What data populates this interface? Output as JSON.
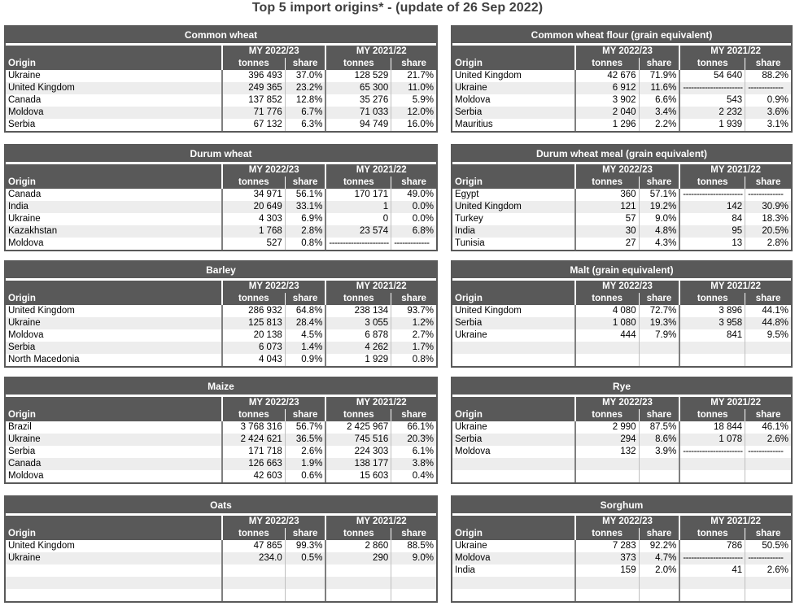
{
  "title": "Top 5 import origins* - (update of 26 Sep 2022)",
  "headers": {
    "origin": "Origin",
    "period1": "MY 2022/23",
    "period2": "MY 2021/22",
    "tonnes": "tonnes",
    "share": "share"
  },
  "tables": [
    {
      "title": "Common wheat",
      "rows": [
        {
          "origin": "Ukraine",
          "t1": "396 493",
          "s1": "37.0%",
          "t2": "128 529",
          "s2": "21.7%"
        },
        {
          "origin": "United Kingdom",
          "t1": "249 365",
          "s1": "23.2%",
          "t2": "65 300",
          "s2": "11.0%"
        },
        {
          "origin": "Canada",
          "t1": "137 852",
          "s1": "12.8%",
          "t2": "35 276",
          "s2": "5.9%"
        },
        {
          "origin": "Moldova",
          "t1": "71 776",
          "s1": "6.7%",
          "t2": "71 033",
          "s2": "12.0%"
        },
        {
          "origin": "Serbia",
          "t1": "67 132",
          "s1": "6.3%",
          "t2": "94 749",
          "s2": "16.0%"
        }
      ]
    },
    {
      "title": "Common wheat flour (grain equivalent)",
      "rows": [
        {
          "origin": "United Kingdom",
          "t1": "42 676",
          "s1": "71.9%",
          "t2": "54 640",
          "s2": "88.2%"
        },
        {
          "origin": "Ukraine",
          "t1": "6 912",
          "s1": "11.6%",
          "t2": "----------------------",
          "s2": "-------------"
        },
        {
          "origin": "Moldova",
          "t1": "3 902",
          "s1": "6.6%",
          "t2": "543",
          "s2": "0.9%"
        },
        {
          "origin": "Serbia",
          "t1": "2 040",
          "s1": "3.4%",
          "t2": "2 232",
          "s2": "3.6%"
        },
        {
          "origin": "Mauritius",
          "t1": "1 296",
          "s1": "2.2%",
          "t2": "1 939",
          "s2": "3.1%"
        }
      ]
    },
    {
      "title": "Durum wheat",
      "rows": [
        {
          "origin": "Canada",
          "t1": "34 971",
          "s1": "56.1%",
          "t2": "170 171",
          "s2": "49.0%"
        },
        {
          "origin": "India",
          "t1": "20 649",
          "s1": "33.1%",
          "t2": "1",
          "s2": "0.0%"
        },
        {
          "origin": "Ukraine",
          "t1": "4 303",
          "s1": "6.9%",
          "t2": "0",
          "s2": "0.0%"
        },
        {
          "origin": "Kazakhstan",
          "t1": "1 768",
          "s1": "2.8%",
          "t2": "23 574",
          "s2": "6.8%"
        },
        {
          "origin": "Moldova",
          "t1": "527",
          "s1": "0.8%",
          "t2": "----------------------",
          "s2": "-------------"
        }
      ]
    },
    {
      "title": "Durum wheat meal (grain equivalent)",
      "rows": [
        {
          "origin": "Egypt",
          "t1": "360",
          "s1": "57.1%",
          "t2": "----------------------",
          "s2": "-------------"
        },
        {
          "origin": "United Kingdom",
          "t1": "121",
          "s1": "19.2%",
          "t2": "142",
          "s2": "30.9%"
        },
        {
          "origin": "Turkey",
          "t1": "57",
          "s1": "9.0%",
          "t2": "84",
          "s2": "18.3%"
        },
        {
          "origin": "India",
          "t1": "30",
          "s1": "4.8%",
          "t2": "95",
          "s2": "20.5%"
        },
        {
          "origin": "Tunisia",
          "t1": "27",
          "s1": "4.3%",
          "t2": "13",
          "s2": "2.8%"
        }
      ]
    },
    {
      "title": "Barley",
      "rows": [
        {
          "origin": "United Kingdom",
          "t1": "286 932",
          "s1": "64.8%",
          "t2": "238 134",
          "s2": "93.7%"
        },
        {
          "origin": "Ukraine",
          "t1": "125 813",
          "s1": "28.4%",
          "t2": "3 055",
          "s2": "1.2%"
        },
        {
          "origin": "Moldova",
          "t1": "20 138",
          "s1": "4.5%",
          "t2": "6 878",
          "s2": "2.7%"
        },
        {
          "origin": "Serbia",
          "t1": "6 073",
          "s1": "1.4%",
          "t2": "4 262",
          "s2": "1.7%"
        },
        {
          "origin": "North Macedonia",
          "t1": "4 043",
          "s1": "0.9%",
          "t2": "1 929",
          "s2": "0.8%"
        }
      ]
    },
    {
      "title": "Malt (grain equivalent)",
      "rows": [
        {
          "origin": "United Kingdom",
          "t1": "4 080",
          "s1": "72.7%",
          "t2": "3 896",
          "s2": "44.1%"
        },
        {
          "origin": "Serbia",
          "t1": "1 080",
          "s1": "19.3%",
          "t2": "3 958",
          "s2": "44.8%"
        },
        {
          "origin": "Ukraine",
          "t1": "444",
          "s1": "7.9%",
          "t2": "841",
          "s2": "9.5%"
        },
        {
          "origin": "",
          "t1": "",
          "s1": "",
          "t2": "",
          "s2": ""
        },
        {
          "origin": "",
          "t1": "",
          "s1": "",
          "t2": "",
          "s2": ""
        }
      ]
    },
    {
      "title": "Maize",
      "rows": [
        {
          "origin": "Brazil",
          "t1": "3 768 316",
          "s1": "56.7%",
          "t2": "2 425 967",
          "s2": "66.1%"
        },
        {
          "origin": "Ukraine",
          "t1": "2 424 621",
          "s1": "36.5%",
          "t2": "745 516",
          "s2": "20.3%"
        },
        {
          "origin": "Serbia",
          "t1": "171 718",
          "s1": "2.6%",
          "t2": "224 303",
          "s2": "6.1%"
        },
        {
          "origin": "Canada",
          "t1": "126 663",
          "s1": "1.9%",
          "t2": "138 177",
          "s2": "3.8%"
        },
        {
          "origin": "Moldova",
          "t1": "42 603",
          "s1": "0.6%",
          "t2": "15 603",
          "s2": "0.4%"
        }
      ]
    },
    {
      "title": "Rye",
      "rows": [
        {
          "origin": "Ukraine",
          "t1": "2 990",
          "s1": "87.5%",
          "t2": "18 844",
          "s2": "46.1%"
        },
        {
          "origin": "Serbia",
          "t1": "294",
          "s1": "8.6%",
          "t2": "1 078",
          "s2": "2.6%"
        },
        {
          "origin": "Moldova",
          "t1": "132",
          "s1": "3.9%",
          "t2": "----------------------",
          "s2": "-------------"
        },
        {
          "origin": "",
          "t1": "",
          "s1": "",
          "t2": "",
          "s2": ""
        },
        {
          "origin": "",
          "t1": "",
          "s1": "",
          "t2": "",
          "s2": ""
        }
      ]
    },
    {
      "title": "Oats",
      "rows": [
        {
          "origin": "United Kingdom",
          "t1": "47 865",
          "s1": "99.3%",
          "t2": "2 860",
          "s2": "88.5%"
        },
        {
          "origin": "Ukraine",
          "t1": "234.0",
          "s1": "0.5%",
          "t2": "290",
          "s2": "9.0%"
        },
        {
          "origin": "",
          "t1": "",
          "s1": "",
          "t2": "",
          "s2": ""
        },
        {
          "origin": "",
          "t1": "",
          "s1": "",
          "t2": "",
          "s2": ""
        },
        {
          "origin": "",
          "t1": "",
          "s1": "",
          "t2": "",
          "s2": ""
        }
      ]
    },
    {
      "title": "Sorghum",
      "rows": [
        {
          "origin": "Ukraine",
          "t1": "7 283",
          "s1": "92.2%",
          "t2": "786",
          "s2": "50.5%"
        },
        {
          "origin": "Moldova",
          "t1": "373",
          "s1": "4.7%",
          "t2": "----------------------",
          "s2": "-------------"
        },
        {
          "origin": "India",
          "t1": "159",
          "s1": "2.0%",
          "t2": "41",
          "s2": "2.6%"
        },
        {
          "origin": "",
          "t1": "",
          "s1": "",
          "t2": "",
          "s2": ""
        },
        {
          "origin": "",
          "t1": "",
          "s1": "",
          "t2": "",
          "s2": ""
        }
      ]
    }
  ]
}
